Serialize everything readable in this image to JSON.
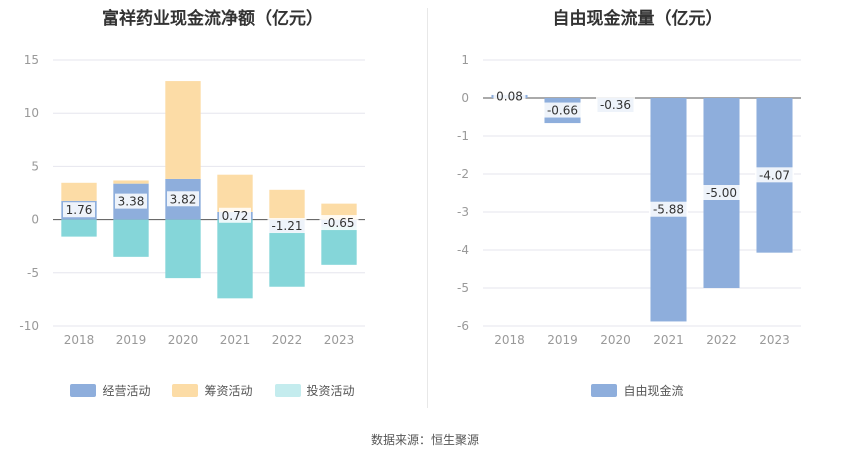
{
  "chart_data": [
    {
      "type": "bar",
      "stacked": true,
      "title": "富祥药业现金流净额（亿元）",
      "categories": [
        "2018",
        "2019",
        "2020",
        "2021",
        "2022",
        "2023"
      ],
      "ylim": [
        -10,
        15
      ],
      "yticks": [
        15,
        10,
        5,
        0,
        -5,
        -10
      ],
      "grid": true,
      "legend_position": "bottom",
      "series": [
        {
          "name": "经营活动",
          "color": "#8eaedc",
          "values": [
            1.76,
            3.38,
            3.82,
            0.72,
            -1.21,
            -0.65
          ],
          "labels": [
            "1.76",
            "3.38",
            "3.82",
            "0.72",
            "-1.21",
            "-0.65"
          ]
        },
        {
          "name": "筹资活动",
          "color": "#fcdca6",
          "values": [
            1.7,
            0.3,
            9.2,
            3.5,
            2.8,
            1.5
          ]
        },
        {
          "name": "投资活动",
          "color": "#85d6d9",
          "legend_color": "#c4ecee",
          "values": [
            -1.6,
            -3.5,
            -5.5,
            -7.4,
            -5.1,
            -3.6
          ]
        }
      ]
    },
    {
      "type": "bar",
      "title": "自由现金流量（亿元）",
      "categories": [
        "2018",
        "2019",
        "2020",
        "2021",
        "2022",
        "2023"
      ],
      "ylim": [
        -6,
        1
      ],
      "yticks": [
        1,
        0,
        -1,
        -2,
        -3,
        -4,
        -5,
        -6
      ],
      "grid": true,
      "legend_position": "bottom",
      "series": [
        {
          "name": "自由现金流",
          "color": "#8eaedc",
          "values": [
            0.08,
            -0.66,
            -0.36,
            -5.88,
            -5.0,
            -4.07
          ],
          "labels": [
            "0.08",
            "-0.66",
            "-0.36",
            "-5.88",
            "-5.00",
            "-4.07"
          ]
        }
      ]
    }
  ],
  "source_text": "数据来源：恒生聚源"
}
